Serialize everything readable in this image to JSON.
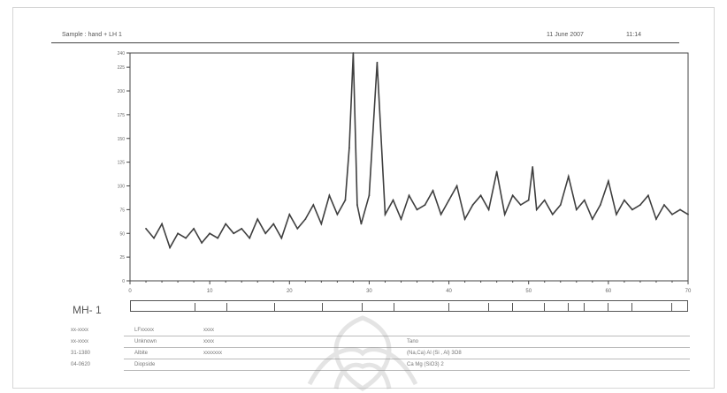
{
  "header": {
    "sample_label": "Sample : hand + LH 1",
    "date_label": "11 June 2007",
    "time_label": "11:14"
  },
  "stick_pattern_label": "MH- 1",
  "reference_entries": [
    {
      "code": "xx-xxxx",
      "name": "LFxxxxx",
      "extra": "xxxx",
      "formula": ""
    },
    {
      "code": "xx-xxxx",
      "name": "Unknown",
      "extra": "xxxx",
      "formula": "Tano"
    },
    {
      "code": "31-1380",
      "name": "Albite",
      "extra": "xxxxxxx",
      "formula": "(Na,Ca) Al (Si , Al) 3O8"
    },
    {
      "code": "04-0620",
      "name": "Diopside",
      "extra": "",
      "formula": "Ca Mg (SiO3) 2"
    }
  ],
  "colors": {
    "trace": "#3f3f3f",
    "axis": "#444444",
    "fit_line": "#111111",
    "watermark": "#8a8a8a"
  },
  "chart_data": {
    "type": "line",
    "title": "",
    "xlabel": "",
    "ylabel": "",
    "xlim": [
      0,
      70
    ],
    "ylim": [
      0,
      240
    ],
    "x_ticks": [
      0,
      10,
      20,
      30,
      40,
      50,
      60,
      70
    ],
    "x_tick_labels": [
      "0",
      "10",
      "20",
      "30",
      "40",
      "50",
      "60",
      "70"
    ],
    "y_ticks": [
      0,
      25,
      50,
      75,
      100,
      125,
      150,
      175,
      200,
      225,
      240
    ],
    "y_tick_labels": [
      "0",
      "25",
      "50",
      "75",
      "100",
      "125",
      "150",
      "175",
      "200",
      "225",
      "240"
    ],
    "grid": false,
    "legend": "none",
    "series": [
      {
        "x": [
          2,
          3,
          4,
          5,
          6,
          7,
          8,
          9,
          10,
          11,
          12,
          13,
          14,
          15,
          16,
          17,
          18,
          19,
          20,
          21,
          22,
          23,
          24,
          25,
          26,
          27,
          27.5,
          28,
          28.5,
          29,
          30,
          31,
          32,
          33,
          34,
          35,
          36,
          37,
          38,
          39,
          40,
          41,
          42,
          43,
          44,
          45,
          46,
          47,
          48,
          49,
          50,
          50.5,
          51,
          52,
          53,
          54,
          55,
          56,
          57,
          58,
          59,
          60,
          61,
          62,
          63,
          64,
          65,
          66,
          67,
          68,
          69,
          70
        ],
        "y": [
          55,
          45,
          60,
          35,
          50,
          45,
          55,
          40,
          50,
          45,
          60,
          50,
          55,
          45,
          65,
          50,
          60,
          45,
          70,
          55,
          65,
          80,
          60,
          90,
          70,
          85,
          140,
          240,
          80,
          60,
          90,
          230,
          70,
          85,
          65,
          90,
          75,
          80,
          95,
          70,
          85,
          100,
          65,
          80,
          90,
          75,
          115,
          70,
          90,
          80,
          85,
          120,
          75,
          85,
          70,
          80,
          110,
          75,
          85,
          65,
          80,
          105,
          70,
          85,
          75,
          80,
          90,
          65,
          80,
          70,
          75,
          70
        ]
      }
    ]
  }
}
